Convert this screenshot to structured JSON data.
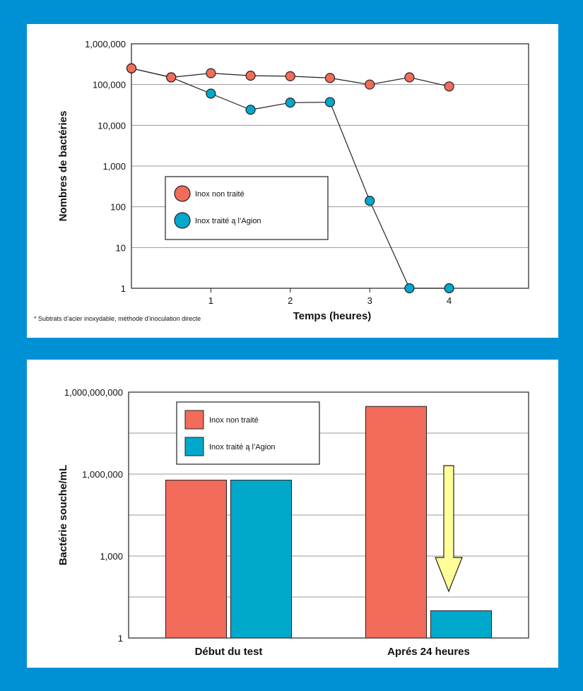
{
  "chart_data": [
    {
      "type": "line",
      "ylabel": "Nombres de bactéries",
      "xlabel": "Temps (heures)",
      "yscale": "log",
      "ylim": [
        1,
        1000000
      ],
      "yticks": [
        "1,000,000",
        "100,000",
        "10,000",
        "1,000",
        "100",
        "10",
        "1"
      ],
      "xticks": [
        "1",
        "2",
        "3",
        "4"
      ],
      "xlim": [
        0,
        5
      ],
      "grid": true,
      "legend_position": "center-left",
      "footnote": "* Subtrats d’acier inoxydable, méthode d’inoculation directe",
      "series": [
        {
          "name": "Inox non traité",
          "color": "#f26b5b",
          "points": [
            [
              0,
              250000
            ],
            [
              0.5,
              150000
            ],
            [
              1,
              190000
            ],
            [
              1.5,
              165000
            ],
            [
              2,
              160000
            ],
            [
              2.5,
              145000
            ],
            [
              3,
              100000
            ],
            [
              3.5,
              150000
            ],
            [
              4,
              90000
            ]
          ]
        },
        {
          "name": "Inox traité ą l’Agion",
          "color": "#00a8cc",
          "points": [
            [
              0,
              250000
            ],
            [
              0.5,
              150000
            ],
            [
              1,
              60000
            ],
            [
              1.5,
              24000
            ],
            [
              2,
              36000
            ],
            [
              2.5,
              37000
            ],
            [
              3,
              140
            ],
            [
              3.5,
              1
            ],
            [
              4,
              1
            ]
          ]
        }
      ]
    },
    {
      "type": "bar",
      "ylabel": "Bactérie souche/mL",
      "yscale": "log",
      "ylim": [
        1,
        1000000000
      ],
      "yticks": [
        "1,000,000,000",
        "1,000,000",
        "1,000",
        "1"
      ],
      "categories": [
        "Début du test",
        "Aprés 24 heures"
      ],
      "grid": true,
      "legend_position": "top-left",
      "series": [
        {
          "name": "Inox non traité",
          "color": "#f26b5b",
          "values": [
            600000,
            300000000
          ]
        },
        {
          "name": "Inox traité ą l’Agion",
          "color": "#00a8cc",
          "values": [
            600000,
            10
          ]
        }
      ],
      "annotation": "downward-arrow",
      "arrow_color": "#ffff99"
    }
  ]
}
